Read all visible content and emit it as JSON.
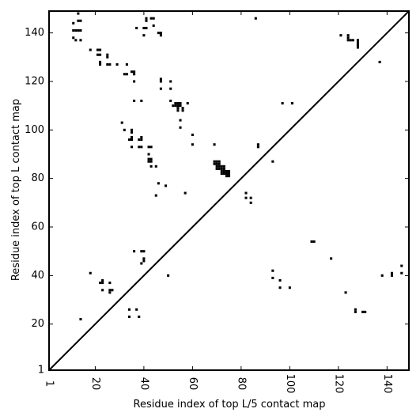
{
  "chart_data": {
    "type": "scatter",
    "title": "",
    "xlabel": "Residue index of top L/5 contact map",
    "ylabel": "Residue index of top L contact map",
    "xlim": [
      1,
      149
    ],
    "ylim": [
      1,
      149
    ],
    "x_ticks": [
      1,
      20,
      40,
      60,
      80,
      100,
      120,
      140
    ],
    "y_ticks": [
      1,
      20,
      40,
      60,
      80,
      100,
      120,
      140
    ],
    "x_tick_rotation": "vertical",
    "diagonal_line": true,
    "grid": false,
    "marker": "square",
    "marker_color": "#000000",
    "points": [
      [
        13,
        148
      ],
      [
        11,
        144
      ],
      [
        13,
        145
      ],
      [
        14,
        145
      ],
      [
        11,
        141
      ],
      [
        12,
        141
      ],
      [
        13,
        141
      ],
      [
        14,
        141
      ],
      [
        11,
        138
      ],
      [
        12,
        137
      ],
      [
        14,
        137
      ],
      [
        18,
        133
      ],
      [
        21,
        133
      ],
      [
        22,
        133
      ],
      [
        21,
        131
      ],
      [
        22,
        131
      ],
      [
        25,
        131
      ],
      [
        25,
        130
      ],
      [
        22,
        128
      ],
      [
        22,
        127
      ],
      [
        25,
        127
      ],
      [
        26,
        127
      ],
      [
        29,
        127
      ],
      [
        33,
        127
      ],
      [
        35,
        124
      ],
      [
        36,
        124
      ],
      [
        33,
        123
      ],
      [
        32,
        123
      ],
      [
        36,
        123
      ],
      [
        36,
        120
      ],
      [
        36,
        112
      ],
      [
        39,
        112
      ],
      [
        37,
        142
      ],
      [
        40,
        142
      ],
      [
        41,
        142
      ],
      [
        41,
        145
      ],
      [
        41,
        146
      ],
      [
        43,
        146
      ],
      [
        44,
        146
      ],
      [
        44,
        143
      ],
      [
        40,
        139
      ],
      [
        46,
        140
      ],
      [
        47,
        140
      ],
      [
        47,
        139
      ],
      [
        47,
        121
      ],
      [
        47,
        120
      ],
      [
        51,
        120
      ],
      [
        47,
        117
      ],
      [
        51,
        117
      ],
      [
        51,
        112
      ],
      [
        52,
        110
      ],
      [
        53,
        110
      ],
      [
        53,
        111
      ],
      [
        54,
        111
      ],
      [
        55,
        111
      ],
      [
        54,
        110
      ],
      [
        55,
        110
      ],
      [
        54,
        109
      ],
      [
        54,
        108
      ],
      [
        56,
        109
      ],
      [
        56,
        108
      ],
      [
        58,
        111
      ],
      [
        55,
        104
      ],
      [
        55,
        101
      ],
      [
        60,
        98
      ],
      [
        60,
        94
      ],
      [
        57,
        74
      ],
      [
        31,
        103
      ],
      [
        32,
        100
      ],
      [
        35,
        100
      ],
      [
        35,
        99
      ],
      [
        35,
        97
      ],
      [
        34,
        96
      ],
      [
        35,
        96
      ],
      [
        38,
        96
      ],
      [
        39,
        96
      ],
      [
        39,
        97
      ],
      [
        35,
        93
      ],
      [
        38,
        93
      ],
      [
        39,
        93
      ],
      [
        42,
        93
      ],
      [
        43,
        93
      ],
      [
        42,
        90
      ],
      [
        42,
        88
      ],
      [
        43,
        88
      ],
      [
        42,
        87
      ],
      [
        43,
        87
      ],
      [
        43,
        85
      ],
      [
        45,
        85
      ],
      [
        46,
        78
      ],
      [
        49,
        77
      ],
      [
        45,
        73
      ],
      [
        69,
        94
      ],
      [
        69,
        87
      ],
      [
        70,
        87
      ],
      [
        71,
        87
      ],
      [
        69,
        86
      ],
      [
        70,
        86
      ],
      [
        71,
        86
      ],
      [
        70,
        85
      ],
      [
        71,
        85
      ],
      [
        72,
        85
      ],
      [
        73,
        85
      ],
      [
        70,
        84
      ],
      [
        71,
        84
      ],
      [
        72,
        84
      ],
      [
        73,
        84
      ],
      [
        72,
        83
      ],
      [
        73,
        83
      ],
      [
        74,
        83
      ],
      [
        75,
        83
      ],
      [
        72,
        82
      ],
      [
        73,
        82
      ],
      [
        74,
        82
      ],
      [
        75,
        82
      ],
      [
        74,
        81
      ],
      [
        75,
        81
      ],
      [
        87,
        94
      ],
      [
        87,
        93
      ],
      [
        93,
        87
      ],
      [
        82,
        74
      ],
      [
        82,
        72
      ],
      [
        84,
        72
      ],
      [
        84,
        70
      ],
      [
        86,
        146
      ],
      [
        97,
        111
      ],
      [
        101,
        111
      ],
      [
        121,
        139
      ],
      [
        124,
        139
      ],
      [
        124,
        138
      ],
      [
        124,
        137
      ],
      [
        125,
        137
      ],
      [
        126,
        137
      ],
      [
        128,
        137
      ],
      [
        128,
        136
      ],
      [
        128,
        135
      ],
      [
        128,
        134
      ],
      [
        137,
        128
      ],
      [
        18,
        41
      ],
      [
        23,
        38
      ],
      [
        22,
        37
      ],
      [
        23,
        37
      ],
      [
        26,
        37
      ],
      [
        23,
        34
      ],
      [
        26,
        34
      ],
      [
        27,
        34
      ],
      [
        26,
        33
      ],
      [
        14,
        22
      ],
      [
        36,
        50
      ],
      [
        39,
        50
      ],
      [
        40,
        50
      ],
      [
        40,
        47
      ],
      [
        40,
        46
      ],
      [
        39,
        45
      ],
      [
        34,
        26
      ],
      [
        37,
        26
      ],
      [
        34,
        23
      ],
      [
        38,
        23
      ],
      [
        50,
        40
      ],
      [
        93,
        42
      ],
      [
        93,
        39
      ],
      [
        96,
        38
      ],
      [
        96,
        35
      ],
      [
        100,
        35
      ],
      [
        109,
        54
      ],
      [
        110,
        54
      ],
      [
        117,
        47
      ],
      [
        123,
        33
      ],
      [
        127,
        26
      ],
      [
        127,
        25
      ],
      [
        130,
        25
      ],
      [
        131,
        25
      ],
      [
        138,
        40
      ],
      [
        142,
        41
      ],
      [
        142,
        40
      ],
      [
        146,
        44
      ],
      [
        146,
        41
      ]
    ]
  }
}
